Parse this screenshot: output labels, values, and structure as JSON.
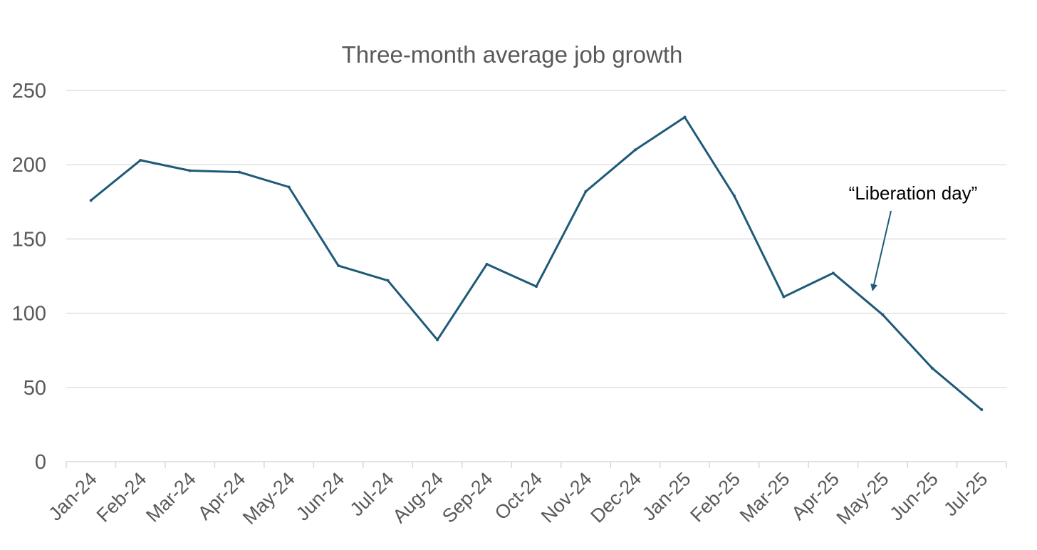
{
  "chart_data": {
    "type": "line",
    "title": "Three-month average job growth",
    "xlabel": "",
    "ylabel": "",
    "categories": [
      "Jan-24",
      "Feb-24",
      "Mar-24",
      "Apr-24",
      "May-24",
      "Jun-24",
      "Jul-24",
      "Aug-24",
      "Sep-24",
      "Oct-24",
      "Nov-24",
      "Dec-24",
      "Jan-25",
      "Feb-25",
      "Mar-25",
      "Apr-25",
      "May-25",
      "Jun-25",
      "Jul-25"
    ],
    "series": [
      {
        "values": [
          176,
          203,
          196,
          195,
          185,
          132,
          122,
          82,
          133,
          118,
          182,
          210,
          232,
          179,
          111,
          127,
          99,
          63,
          35
        ]
      }
    ],
    "ylim": [
      0,
      250
    ],
    "yticks": [
      0,
      50,
      100,
      150,
      200,
      250
    ],
    "grid": true,
    "legend": "none",
    "line_color": "#1f5a78",
    "annotation": {
      "text": "“Liberation day”",
      "category": "May-25"
    }
  }
}
